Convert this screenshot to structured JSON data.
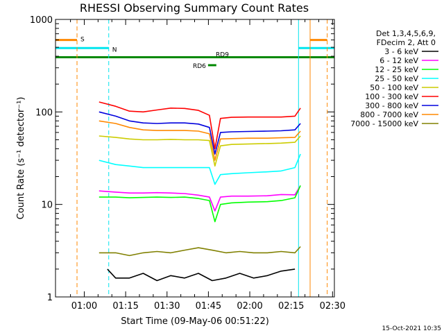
{
  "chart_data": {
    "type": "line",
    "title": "RHESSI Observing Summary Count Rates",
    "xlabel": "Start Time (09-May-06 00:51:22)",
    "ylabel": "Count Rate (s⁻¹ detector⁻¹)",
    "x_unit": "minutes after 00:51:22",
    "xlim": [
      -1.8,
      99.3
    ],
    "ylim": [
      1,
      1000
    ],
    "yscale": "log",
    "x_ticks": [
      {
        "value": 8.63,
        "label": "01:00"
      },
      {
        "value": 23.63,
        "label": "01:15"
      },
      {
        "value": 38.63,
        "label": "01:30"
      },
      {
        "value": 53.63,
        "label": "01:45"
      },
      {
        "value": 68.63,
        "label": "02:00"
      },
      {
        "value": 83.63,
        "label": "02:15"
      },
      {
        "value": 98.63,
        "label": "02:30"
      }
    ],
    "y_ticks": [
      {
        "value": 1,
        "label": "1"
      },
      {
        "value": 10,
        "label": "10"
      },
      {
        "value": 100,
        "label": "100"
      },
      {
        "value": 1000,
        "label": "1000"
      }
    ],
    "legend": {
      "position": "right",
      "header": [
        "Det 1,3,4,5,6,9,",
        "FDecim 2, Att 0"
      ]
    },
    "series": [
      {
        "name": "3 - 6 keV",
        "color": "#000000",
        "x": [
          17,
          20,
          25,
          30,
          35,
          40,
          45,
          50,
          55,
          60,
          65,
          70,
          75,
          80,
          85
        ],
        "y": [
          2,
          1.6,
          1.6,
          1.8,
          1.5,
          1.7,
          1.6,
          1.8,
          1.5,
          1.6,
          1.8,
          1.6,
          1.7,
          1.9,
          2
        ]
      },
      {
        "name": "6 - 12 keV",
        "color": "#ff00ff",
        "x": [
          14,
          20,
          25,
          30,
          35,
          40,
          45,
          50,
          54,
          56,
          58,
          62,
          68,
          75,
          80,
          85,
          87
        ],
        "y": [
          14,
          13.6,
          13.3,
          13.3,
          13.4,
          13.3,
          13.1,
          12.6,
          12,
          8.5,
          12,
          12.3,
          12.3,
          12.4,
          12.8,
          12.7,
          16
        ]
      },
      {
        "name": "12 - 25 keV",
        "color": "#00ff00",
        "x": [
          14,
          20,
          25,
          30,
          35,
          40,
          45,
          50,
          54,
          56,
          58,
          62,
          68,
          75,
          80,
          85,
          87
        ],
        "y": [
          12,
          12,
          11.8,
          11.9,
          12,
          11.9,
          12,
          11.6,
          11,
          6.5,
          10,
          10.4,
          10.6,
          10.7,
          11,
          11.8,
          16
        ]
      },
      {
        "name": "25 - 50 keV",
        "color": "#00ffff",
        "x": [
          14,
          20,
          25,
          30,
          35,
          40,
          45,
          50,
          54,
          56,
          58,
          62,
          68,
          75,
          80,
          85,
          87
        ],
        "y": [
          30,
          27,
          26,
          25,
          25,
          25,
          25,
          25,
          25,
          16.5,
          21,
          21.5,
          22,
          22.5,
          23,
          25,
          35
        ]
      },
      {
        "name": "50 - 100 keV",
        "color": "#cccc00",
        "x": [
          14,
          20,
          25,
          30,
          35,
          40,
          45,
          50,
          54,
          56,
          58,
          62,
          68,
          75,
          80,
          85,
          87
        ],
        "y": [
          55,
          53,
          51,
          50,
          50,
          50.5,
          50,
          50,
          49,
          26,
          43,
          44.5,
          45,
          45.5,
          46,
          47,
          55
        ]
      },
      {
        "name": "100 - 300 keV",
        "color": "#ff0000",
        "x": [
          14,
          20,
          25,
          30,
          35,
          40,
          45,
          50,
          54,
          56,
          58,
          62,
          68,
          75,
          80,
          85,
          87
        ],
        "y": [
          128,
          115,
          102,
          100,
          105,
          110,
          109,
          104,
          92,
          40,
          85,
          87.5,
          88,
          88,
          88,
          90,
          110
        ]
      },
      {
        "name": "300 - 800 keV",
        "color": "#0000dd",
        "x": [
          14,
          20,
          25,
          30,
          35,
          40,
          45,
          50,
          54,
          56,
          58,
          62,
          68,
          75,
          80,
          85,
          87
        ],
        "y": [
          100,
          90,
          80,
          76,
          75,
          76,
          76,
          74,
          68,
          35,
          60,
          61,
          61.5,
          62,
          62.5,
          64,
          75
        ]
      },
      {
        "name": "800 - 7000 keV",
        "color": "#ff8800",
        "x": [
          14,
          20,
          25,
          30,
          35,
          40,
          45,
          50,
          54,
          56,
          58,
          62,
          68,
          75,
          80,
          85,
          87
        ],
        "y": [
          80,
          75,
          68,
          64,
          63,
          63,
          63,
          62,
          58,
          30,
          51,
          51.5,
          52,
          52,
          52.5,
          53,
          62
        ]
      },
      {
        "name": "7000 - 15000 keV",
        "color": "#808000",
        "x": [
          14,
          20,
          25,
          30,
          35,
          40,
          45,
          50,
          55,
          60,
          65,
          70,
          75,
          80,
          85,
          87
        ],
        "y": [
          3,
          3,
          2.8,
          3,
          3.1,
          3,
          3.2,
          3.4,
          3.2,
          3,
          3.1,
          3,
          3,
          3.1,
          3,
          3.5
        ]
      }
    ],
    "markers": [
      {
        "label": "S",
        "x": 6.0,
        "color": "#ff8800",
        "dashed": true
      },
      {
        "label": "N",
        "x": 17.5,
        "color": "#00e5ee",
        "dashed": true
      },
      {
        "label": "",
        "x": 86.3,
        "color": "#00e5ee",
        "dashed": false
      },
      {
        "label": "",
        "x": 90.5,
        "color": "#ff8800",
        "dashed": false
      },
      {
        "label": "",
        "x": 96.7,
        "color": "#ff8800",
        "dashed": true
      }
    ],
    "flag_bars": [
      {
        "label": "S",
        "color": "#ff8800",
        "segments": [
          [
            -1.8,
            6.0
          ],
          [
            90.5,
            96.7
          ]
        ],
        "y": 600
      },
      {
        "label": "N",
        "color": "#00e5ee",
        "segments": [
          [
            -1.8,
            17.5
          ],
          [
            86.3,
            99.3
          ]
        ],
        "y": 490
      },
      {
        "label": "RD9",
        "color": "#008800",
        "segments": [
          [
            -1.8,
            99.3
          ]
        ],
        "y": 390
      },
      {
        "label": "RD6",
        "color": "#008800",
        "segments": [
          [
            53.5,
            56.5
          ]
        ],
        "y": 320
      }
    ]
  },
  "footer": {
    "date": "15-Oct-2021 10:35"
  }
}
